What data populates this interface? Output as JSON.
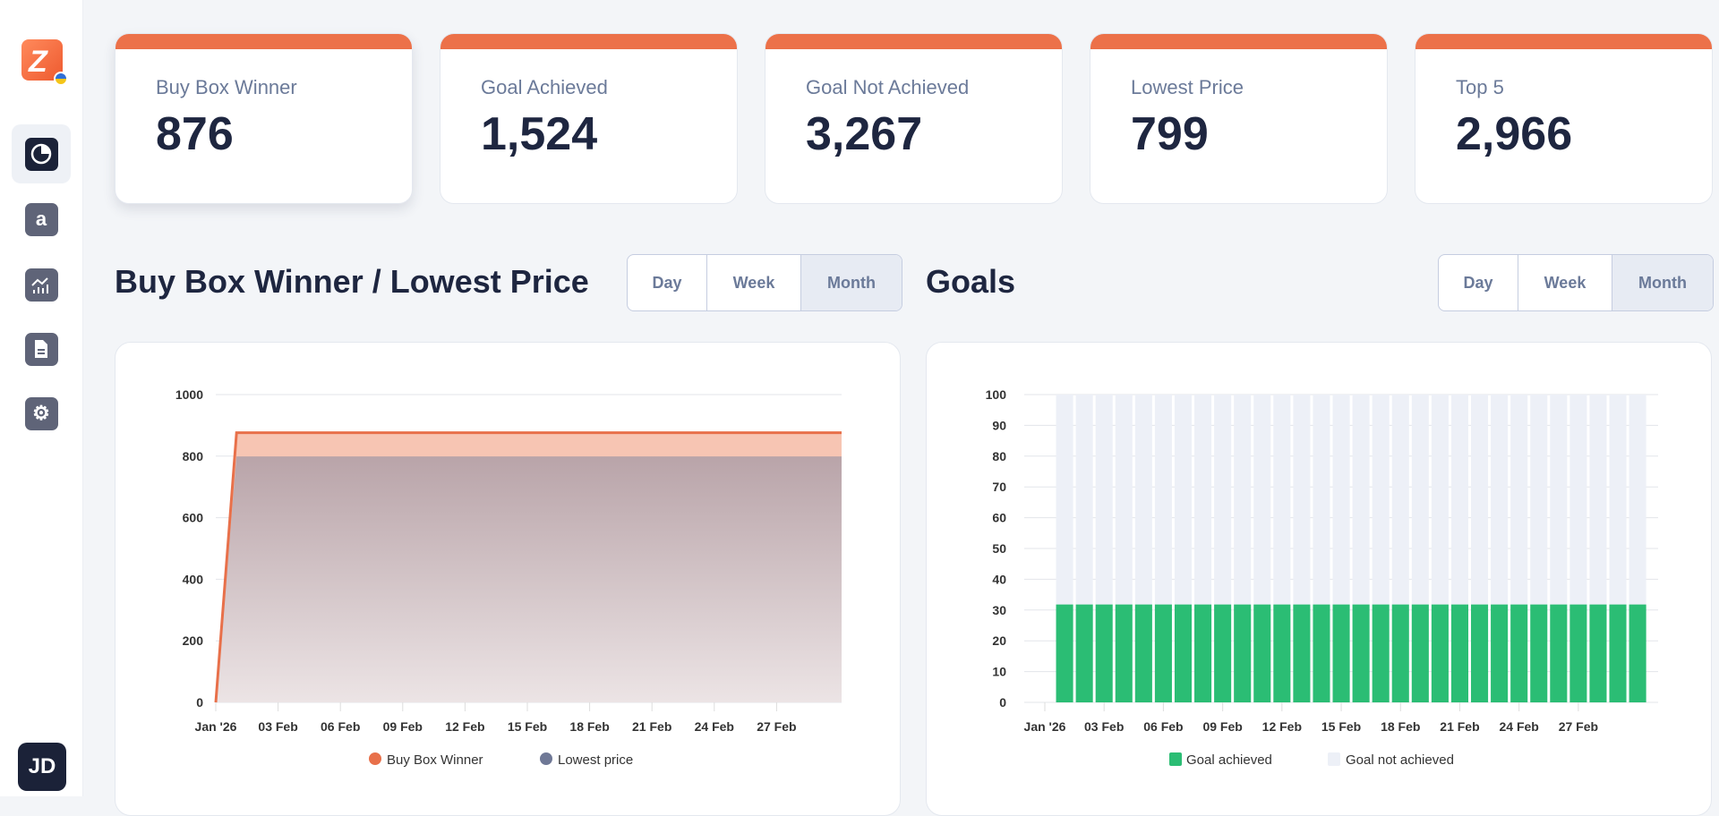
{
  "sidebar": {
    "avatar_initials": "JD",
    "items": [
      {
        "name": "dashboard",
        "icon": "pie-chart-icon",
        "active": true
      },
      {
        "name": "amazon",
        "icon": "amazon-icon",
        "glyph": "a"
      },
      {
        "name": "analytics",
        "icon": "chart-growth-icon"
      },
      {
        "name": "documents",
        "icon": "document-icon"
      },
      {
        "name": "settings",
        "icon": "gear-icon"
      }
    ]
  },
  "colors": {
    "accent": "#ec7149",
    "buy_box": "#e8704a",
    "lowest_price": "#6f7896",
    "goal_achieved": "#2bbd74",
    "goal_not_achieved": "#edf0f7"
  },
  "cards": [
    {
      "label": "Buy Box Winner",
      "value": "876"
    },
    {
      "label": "Goal Achieved",
      "value": "1,524"
    },
    {
      "label": "Goal Not Achieved",
      "value": "3,267"
    },
    {
      "label": "Lowest Price",
      "value": "799"
    },
    {
      "label": "Top 5",
      "value": "2,966"
    }
  ],
  "sections": {
    "left": {
      "title": "Buy Box Winner / Lowest Price",
      "periods": [
        "Day",
        "Week",
        "Month"
      ],
      "selected": "Month"
    },
    "right": {
      "title": "Goals",
      "periods": [
        "Day",
        "Week",
        "Month"
      ],
      "selected": "Month"
    }
  },
  "chart_data": [
    {
      "type": "area",
      "ylim": [
        0,
        1000
      ],
      "yticks": [
        "0",
        "200",
        "400",
        "600",
        "800",
        "1000"
      ],
      "xtick_labels": [
        "Jan '26",
        "03 Feb",
        "06 Feb",
        "09 Feb",
        "12 Feb",
        "15 Feb",
        "18 Feb",
        "21 Feb",
        "24 Feb",
        "27 Feb"
      ],
      "x": [
        "31 Jan",
        "01 Feb",
        "02 Feb",
        "03 Feb",
        "04 Feb",
        "05 Feb",
        "06 Feb",
        "07 Feb",
        "08 Feb",
        "09 Feb",
        "10 Feb",
        "11 Feb",
        "12 Feb",
        "13 Feb",
        "14 Feb",
        "15 Feb",
        "16 Feb",
        "17 Feb",
        "18 Feb",
        "19 Feb",
        "20 Feb",
        "21 Feb",
        "22 Feb",
        "23 Feb",
        "24 Feb",
        "25 Feb",
        "26 Feb",
        "27 Feb",
        "28 Feb",
        "01 Mar",
        "02 Mar"
      ],
      "series": [
        {
          "name": "Buy Box Winner",
          "values": [
            0,
            876,
            876,
            876,
            876,
            876,
            876,
            876,
            876,
            876,
            876,
            876,
            876,
            876,
            876,
            876,
            876,
            876,
            876,
            876,
            876,
            876,
            876,
            876,
            876,
            876,
            876,
            876,
            876,
            876,
            876
          ]
        },
        {
          "name": "Lowest price",
          "values": [
            0,
            799,
            799,
            799,
            799,
            799,
            799,
            799,
            799,
            799,
            799,
            799,
            799,
            799,
            799,
            799,
            799,
            799,
            799,
            799,
            799,
            799,
            799,
            799,
            799,
            799,
            799,
            799,
            799,
            799,
            799
          ]
        }
      ],
      "legend": "bottom",
      "grid": true
    },
    {
      "type": "bar",
      "stacked": true,
      "ylim": [
        0,
        100
      ],
      "yticks": [
        "0",
        "10",
        "20",
        "30",
        "40",
        "50",
        "60",
        "70",
        "80",
        "90",
        "100"
      ],
      "xtick_labels": [
        "Jan '26",
        "03 Feb",
        "06 Feb",
        "09 Feb",
        "12 Feb",
        "15 Feb",
        "18 Feb",
        "21 Feb",
        "24 Feb",
        "27 Feb"
      ],
      "categories": [
        "01 Feb",
        "02 Feb",
        "03 Feb",
        "04 Feb",
        "05 Feb",
        "06 Feb",
        "07 Feb",
        "08 Feb",
        "09 Feb",
        "10 Feb",
        "11 Feb",
        "12 Feb",
        "13 Feb",
        "14 Feb",
        "15 Feb",
        "16 Feb",
        "17 Feb",
        "18 Feb",
        "19 Feb",
        "20 Feb",
        "21 Feb",
        "22 Feb",
        "23 Feb",
        "24 Feb",
        "25 Feb",
        "26 Feb",
        "27 Feb",
        "28 Feb",
        "01 Mar",
        "02 Mar"
      ],
      "series": [
        {
          "name": "Goal achieved",
          "values": [
            31.8,
            31.8,
            31.8,
            31.8,
            31.8,
            31.8,
            31.8,
            31.8,
            31.8,
            31.8,
            31.8,
            31.8,
            31.8,
            31.8,
            31.8,
            31.8,
            31.8,
            31.8,
            31.8,
            31.8,
            31.8,
            31.8,
            31.8,
            31.8,
            31.8,
            31.8,
            31.8,
            31.8,
            31.8,
            31.8
          ]
        },
        {
          "name": "Goal not achieved",
          "values": [
            68.2,
            68.2,
            68.2,
            68.2,
            68.2,
            68.2,
            68.2,
            68.2,
            68.2,
            68.2,
            68.2,
            68.2,
            68.2,
            68.2,
            68.2,
            68.2,
            68.2,
            68.2,
            68.2,
            68.2,
            68.2,
            68.2,
            68.2,
            68.2,
            68.2,
            68.2,
            68.2,
            68.2,
            68.2,
            68.2
          ]
        }
      ],
      "legend": "bottom",
      "grid": true
    }
  ]
}
